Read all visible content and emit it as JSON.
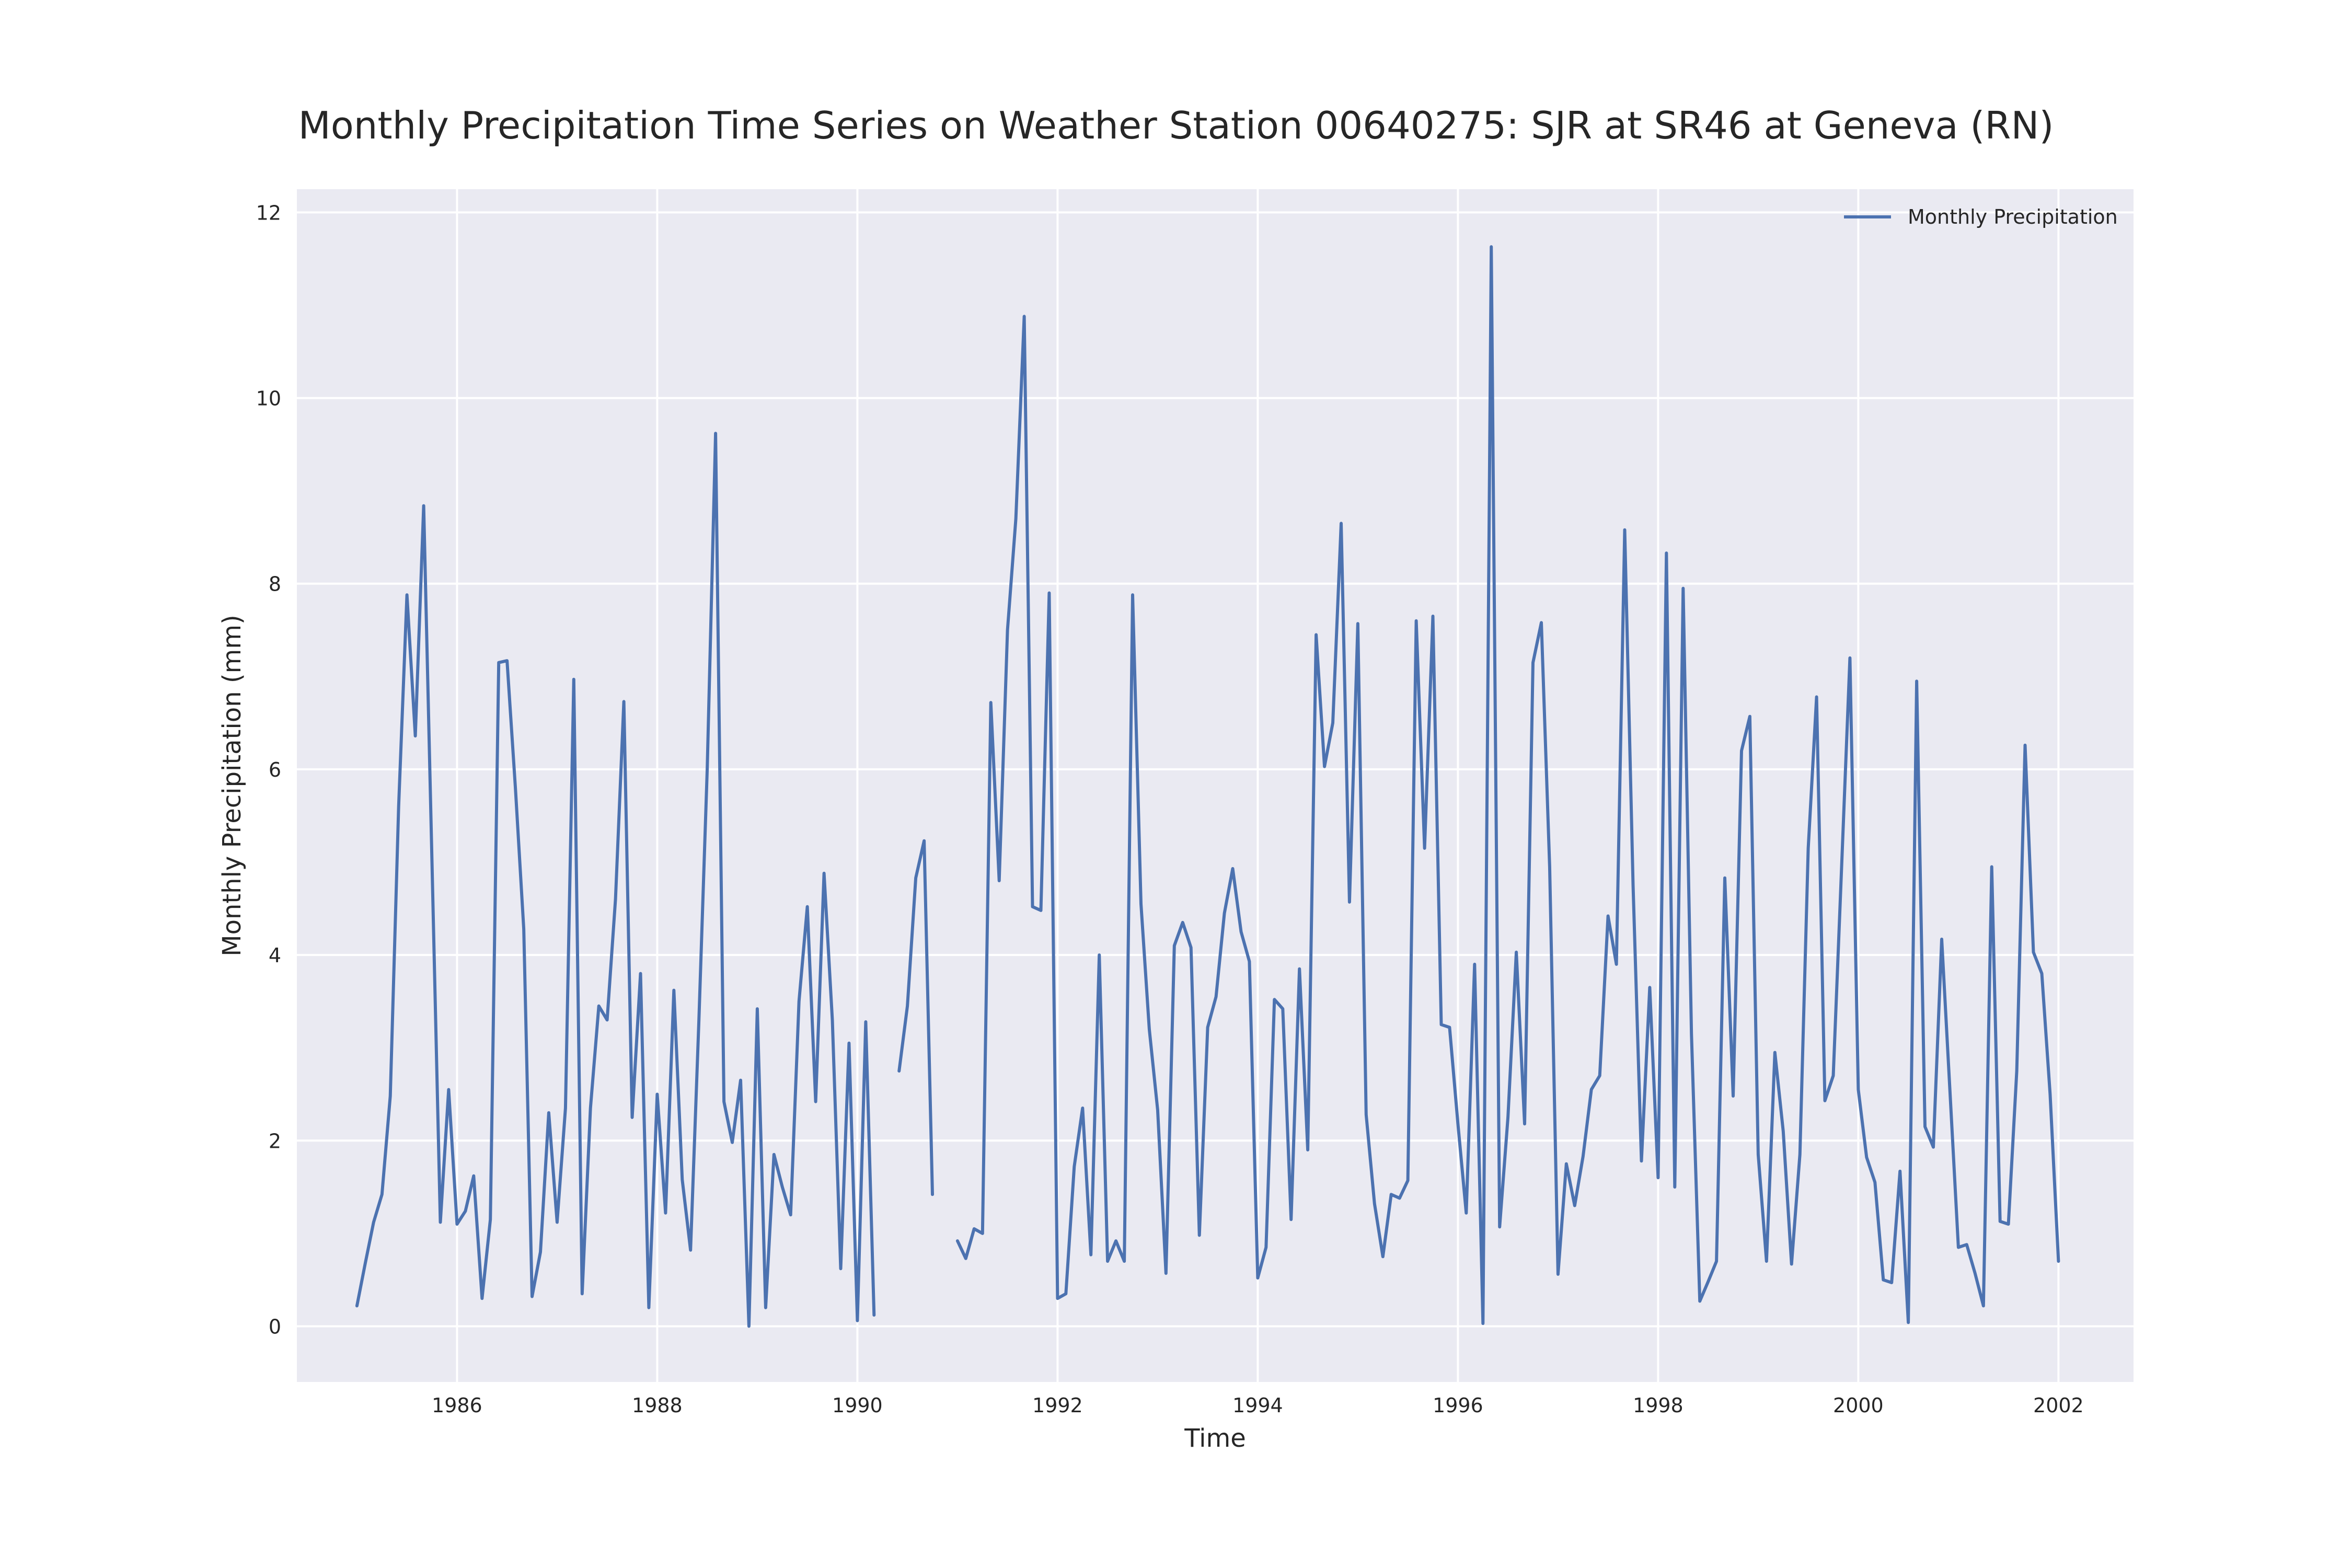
{
  "chart_data": {
    "type": "line",
    "title": "Monthly Precipitation Time Series on Weather Station 00640275: SJR at SR46 at Geneva (RN)",
    "xlabel": "Time",
    "ylabel": "Monthly Precipitation (mm)",
    "xlim": [
      1984.4,
      2002.75
    ],
    "ylim": [
      -0.6,
      12.25
    ],
    "x_ticks": [
      1986,
      1988,
      1990,
      1992,
      1994,
      1996,
      1998,
      2000,
      2002
    ],
    "y_ticks": [
      0,
      2,
      4,
      6,
      8,
      10,
      12
    ],
    "grid": true,
    "legend": "top-right",
    "colors": {
      "line": "#4c72b0",
      "plot_bg": "#eaeaf2",
      "grid": "#ffffff"
    },
    "series": [
      {
        "name": "Monthly Precipitation",
        "x_start": "1985-01",
        "frequency": "monthly",
        "values": [
          0.22,
          0.68,
          1.12,
          1.42,
          2.48,
          5.6,
          7.88,
          6.36,
          8.84,
          5.0,
          1.12,
          2.55,
          1.1,
          1.24,
          1.62,
          0.3,
          1.15,
          7.15,
          7.17,
          5.8,
          4.28,
          0.32,
          0.8,
          2.3,
          1.12,
          2.35,
          6.97,
          0.35,
          2.35,
          3.45,
          3.3,
          4.6,
          6.73,
          2.25,
          3.8,
          0.2,
          2.5,
          1.22,
          3.62,
          1.58,
          0.82,
          3.3,
          6.0,
          9.62,
          2.42,
          1.98,
          2.65,
          0.0,
          3.42,
          0.2,
          1.85,
          1.5,
          1.2,
          3.5,
          4.52,
          2.42,
          4.88,
          3.3,
          0.62,
          3.05,
          0.06,
          3.28,
          0.12,
          null,
          null,
          2.75,
          3.45,
          4.83,
          5.23,
          1.42,
          null,
          null,
          0.92,
          0.73,
          1.05,
          1.0,
          6.72,
          4.8,
          7.5,
          8.7,
          10.88,
          4.52,
          4.48,
          7.9,
          0.3,
          0.35,
          1.72,
          2.35,
          0.77,
          4.0,
          0.7,
          0.92,
          0.7,
          7.88,
          4.55,
          3.2,
          2.33,
          0.57,
          4.1,
          4.35,
          4.08,
          0.98,
          3.22,
          3.55,
          4.45,
          4.93,
          4.25,
          3.93,
          0.52,
          0.85,
          3.52,
          3.42,
          1.15,
          3.85,
          1.9,
          7.45,
          6.03,
          6.5,
          8.65,
          4.57,
          7.57,
          2.28,
          1.32,
          0.75,
          1.42,
          1.38,
          1.57,
          7.6,
          5.15,
          7.65,
          3.25,
          3.22,
          2.18,
          1.22,
          3.9,
          0.03,
          11.63,
          1.07,
          2.25,
          4.03,
          2.18,
          7.15,
          7.58,
          4.95,
          0.56,
          1.75,
          1.3,
          1.83,
          2.55,
          2.7,
          4.42,
          3.9,
          8.58,
          4.75,
          1.78,
          3.65,
          1.6,
          8.33,
          1.5,
          7.95,
          3.15,
          0.27,
          0.48,
          0.7,
          4.83,
          2.48,
          6.2,
          6.57,
          1.85,
          0.7,
          2.95,
          2.1,
          0.67,
          1.85,
          5.15,
          6.78,
          2.43,
          2.7,
          4.95,
          7.2,
          2.55,
          1.82,
          1.55,
          0.5,
          0.47,
          1.67,
          0.04,
          6.95,
          2.15,
          1.93,
          4.17,
          2.52,
          0.85,
          0.88,
          0.57,
          0.22,
          4.95,
          1.13,
          1.1,
          2.75,
          6.26,
          4.03,
          3.8,
          2.5,
          0.7
        ]
      }
    ]
  }
}
